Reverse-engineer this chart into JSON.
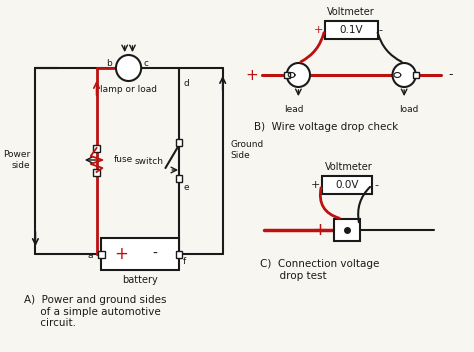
{
  "bg_color": "#f8f6f0",
  "line_color": "#1a1a1a",
  "red_color": "#bb1111",
  "title_A": "A)  Power and ground sides\n     of a simple automotive\n     circuit.",
  "title_B": "B)  Wire voltage drop check",
  "title_C": "C)  Connection voltage\n      drop test",
  "voltmeter_B": "0.1V",
  "voltmeter_C": "0.0V",
  "label_voltmeter": "Voltmeter",
  "label_lead_left": "lead",
  "label_load_right": "load",
  "label_battery": "battery",
  "label_fuse": "fuse",
  "label_switch": "switch",
  "label_lamp": "lamp or load",
  "label_power_side": "Power\nside",
  "label_ground_side": "Ground\nSide",
  "labels_node": [
    "a",
    "b",
    "c",
    "d",
    "e",
    "f"
  ]
}
